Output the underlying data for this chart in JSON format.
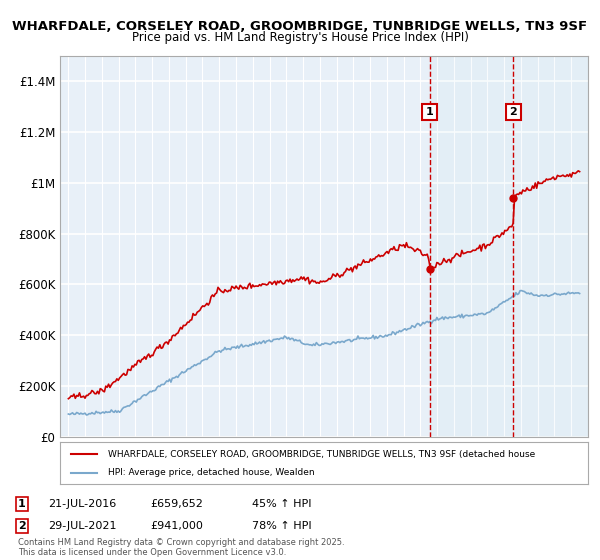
{
  "title_line1": "WHARFDALE, CORSELEY ROAD, GROOMBRIDGE, TUNBRIDGE WELLS, TN3 9SF",
  "title_line2": "Price paid vs. HM Land Registry's House Price Index (HPI)",
  "xlabel": "",
  "ylabel": "",
  "ylim": [
    0,
    1500000
  ],
  "yticks": [
    0,
    200000,
    400000,
    600000,
    800000,
    1000000,
    1200000,
    1400000
  ],
  "ytick_labels": [
    "£0",
    "£200K",
    "£400K",
    "£600K",
    "£800K",
    "£1M",
    "£1.2M",
    "£1.4M"
  ],
  "background_color": "#e8f0f8",
  "plot_bg_color": "#e8f0f8",
  "grid_color": "#ffffff",
  "red_color": "#cc0000",
  "blue_color": "#7aa8cc",
  "vline_color": "#cc0000",
  "marker1_year": 2016.55,
  "marker2_year": 2021.55,
  "marker1_label": "1",
  "marker2_label": "2",
  "legend_line1": "WHARFDALE, CORSELEY ROAD, GROOMBRIDGE, TUNBRIDGE WELLS, TN3 9SF (detached house",
  "legend_line2": "HPI: Average price, detached house, Wealden",
  "annotation1_date": "21-JUL-2016",
  "annotation1_price": "£659,652",
  "annotation1_hpi": "45% ↑ HPI",
  "annotation2_date": "29-JUL-2021",
  "annotation2_price": "£941,000",
  "annotation2_hpi": "78% ↑ HPI",
  "footer": "Contains HM Land Registry data © Crown copyright and database right 2025.\nThis data is licensed under the Open Government Licence v3.0.",
  "xstart": 1995,
  "xend": 2026
}
